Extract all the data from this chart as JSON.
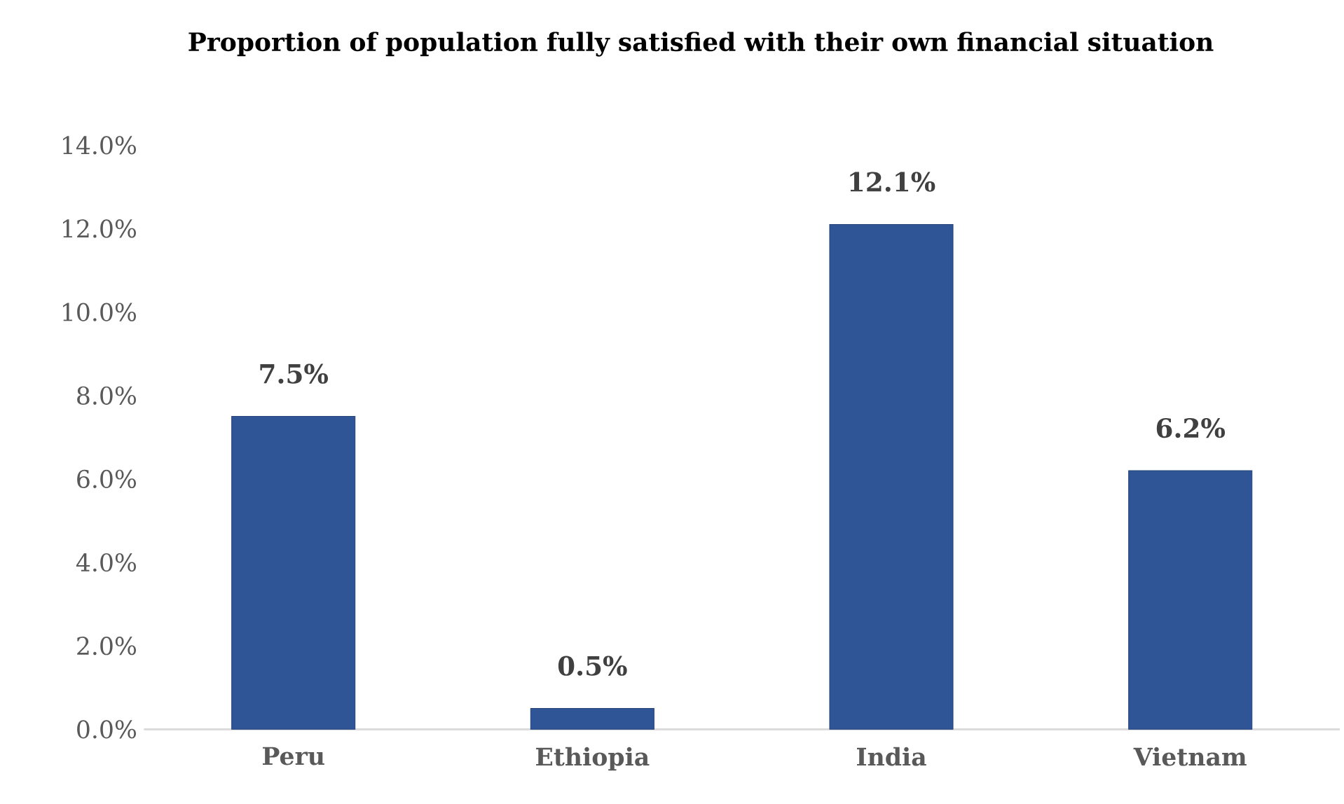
{
  "chart_data": {
    "type": "bar",
    "title": "Proportion of population fully satisfied with their own financial situation",
    "categories": [
      "Peru",
      "Ethiopia",
      "India",
      "Vietnam"
    ],
    "values": [
      7.5,
      0.5,
      12.1,
      6.2
    ],
    "value_labels": [
      "7.5%",
      "0.5%",
      "12.1%",
      "6.2%"
    ],
    "color": "#2f5597",
    "ylim": [
      0,
      14
    ],
    "yticks": [
      {
        "value": 0,
        "label": "0.0%"
      },
      {
        "value": 2,
        "label": "2.0%"
      },
      {
        "value": 4,
        "label": "4.0%"
      },
      {
        "value": 6,
        "label": "6.0%"
      },
      {
        "value": 8,
        "label": "8.0%"
      },
      {
        "value": 10,
        "label": "10.0%"
      },
      {
        "value": 12,
        "label": "12.0%"
      },
      {
        "value": 14,
        "label": "14.0%"
      }
    ]
  }
}
